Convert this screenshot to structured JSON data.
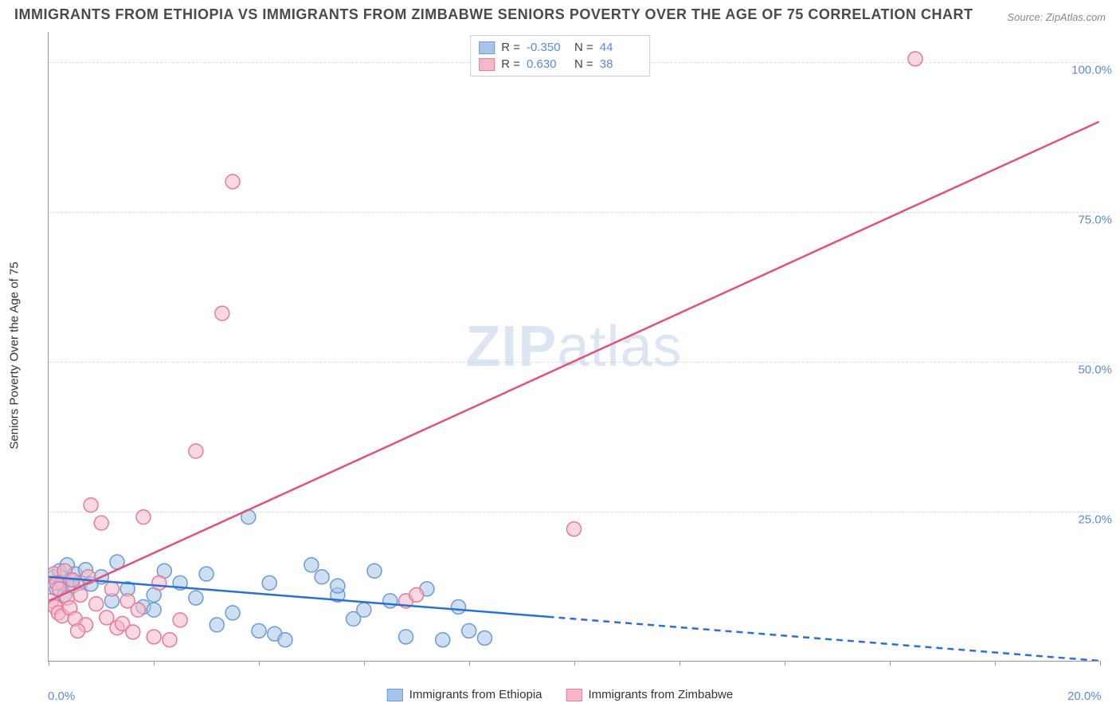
{
  "title": "IMMIGRANTS FROM ETHIOPIA VS IMMIGRANTS FROM ZIMBABWE SENIORS POVERTY OVER THE AGE OF 75 CORRELATION CHART",
  "source_label": "Source: ZipAtlas.com",
  "y_axis_label": "Seniors Poverty Over the Age of 75",
  "watermark_a": "ZIP",
  "watermark_b": "atlas",
  "chart": {
    "type": "scatter",
    "background_color": "#ffffff",
    "grid_color": "#dddddd",
    "axis_color": "#999999",
    "tick_label_color": "#5b8bd4",
    "tick_fontsize": 15,
    "title_fontsize": 18,
    "xlim": [
      0,
      20
    ],
    "ylim": [
      0,
      105
    ],
    "x_ticks": [
      0,
      2,
      4,
      6,
      8,
      10,
      12,
      14,
      16,
      18,
      20
    ],
    "x_tick_labels": [
      "0.0%",
      "",
      "",
      "",
      "",
      "",
      "",
      "",
      "",
      "",
      "20.0%"
    ],
    "y_ticks": [
      25,
      50,
      75,
      100
    ],
    "y_tick_labels": [
      "25.0%",
      "50.0%",
      "75.0%",
      "100.0%"
    ],
    "series": [
      {
        "name": "Immigrants from Ethiopia",
        "marker_color_fill": "#a8c5e8",
        "marker_color_stroke": "#6a9bd8",
        "marker_fill_opacity": 0.55,
        "marker_radius": 9,
        "line_color": "#2d6fd0",
        "line_width": 2.5,
        "dash_from_x": 9.5,
        "R_label": "R =",
        "R_value": "-0.350",
        "N_label": "N =",
        "N_value": "44",
        "trend": {
          "x0": 0,
          "y0": 14,
          "x1": 20,
          "y1": 0
        },
        "points": [
          [
            0.1,
            14
          ],
          [
            0.15,
            12
          ],
          [
            0.2,
            15
          ],
          [
            0.25,
            13
          ],
          [
            0.3,
            11
          ],
          [
            0.35,
            16
          ],
          [
            0.4,
            13.5
          ],
          [
            0.45,
            12.5
          ],
          [
            0.5,
            14.5
          ],
          [
            0.6,
            13
          ],
          [
            0.7,
            15.2
          ],
          [
            0.8,
            12.8
          ],
          [
            1.0,
            14
          ],
          [
            1.2,
            10
          ],
          [
            1.3,
            16.5
          ],
          [
            1.5,
            12
          ],
          [
            1.8,
            9
          ],
          [
            2.0,
            11
          ],
          [
            2.2,
            15
          ],
          [
            2.0,
            8.5
          ],
          [
            2.5,
            13
          ],
          [
            2.8,
            10.5
          ],
          [
            3.0,
            14.5
          ],
          [
            3.2,
            6
          ],
          [
            3.5,
            8
          ],
          [
            3.8,
            24
          ],
          [
            4.0,
            5
          ],
          [
            4.2,
            13
          ],
          [
            4.3,
            4.5
          ],
          [
            4.5,
            3.5
          ],
          [
            5.0,
            16
          ],
          [
            5.2,
            14
          ],
          [
            5.5,
            11
          ],
          [
            5.8,
            7
          ],
          [
            5.5,
            12.5
          ],
          [
            6.0,
            8.5
          ],
          [
            6.2,
            15
          ],
          [
            6.5,
            10
          ],
          [
            6.8,
            4
          ],
          [
            7.2,
            12
          ],
          [
            7.5,
            3.5
          ],
          [
            7.8,
            9
          ],
          [
            8.0,
            5
          ],
          [
            8.3,
            3.8
          ]
        ]
      },
      {
        "name": "Immigrants from Zimbabwe",
        "marker_color_fill": "#f5b8c8",
        "marker_color_stroke": "#e77a9a",
        "marker_fill_opacity": 0.55,
        "marker_radius": 9,
        "line_color": "#e0517b",
        "line_width": 2.5,
        "dash_from_x": null,
        "R_label": "R =",
        "R_value": "0.630",
        "N_label": "N =",
        "N_value": "38",
        "trend": {
          "x0": 0,
          "y0": 10,
          "x1": 20,
          "y1": 90
        },
        "points": [
          [
            0.05,
            10
          ],
          [
            0.1,
            14.5
          ],
          [
            0.12,
            9
          ],
          [
            0.15,
            13
          ],
          [
            0.18,
            8
          ],
          [
            0.2,
            12
          ],
          [
            0.25,
            7.5
          ],
          [
            0.3,
            15
          ],
          [
            0.35,
            10.5
          ],
          [
            0.4,
            8.8
          ],
          [
            0.45,
            13.5
          ],
          [
            0.5,
            7
          ],
          [
            0.6,
            11
          ],
          [
            0.7,
            6
          ],
          [
            0.75,
            14
          ],
          [
            0.8,
            26
          ],
          [
            0.9,
            9.5
          ],
          [
            1.0,
            23
          ],
          [
            1.1,
            7.2
          ],
          [
            1.2,
            12
          ],
          [
            1.3,
            5.5
          ],
          [
            1.4,
            6.2
          ],
          [
            1.5,
            10
          ],
          [
            1.6,
            4.8
          ],
          [
            1.7,
            8.5
          ],
          [
            1.8,
            24
          ],
          [
            2.0,
            4
          ],
          [
            2.1,
            13
          ],
          [
            2.3,
            3.5
          ],
          [
            2.5,
            6.8
          ],
          [
            2.8,
            35
          ],
          [
            3.3,
            58
          ],
          [
            3.5,
            80
          ],
          [
            6.8,
            10
          ],
          [
            7.0,
            11
          ],
          [
            10.0,
            22
          ],
          [
            16.5,
            100.5
          ],
          [
            0.55,
            5
          ]
        ]
      }
    ]
  }
}
